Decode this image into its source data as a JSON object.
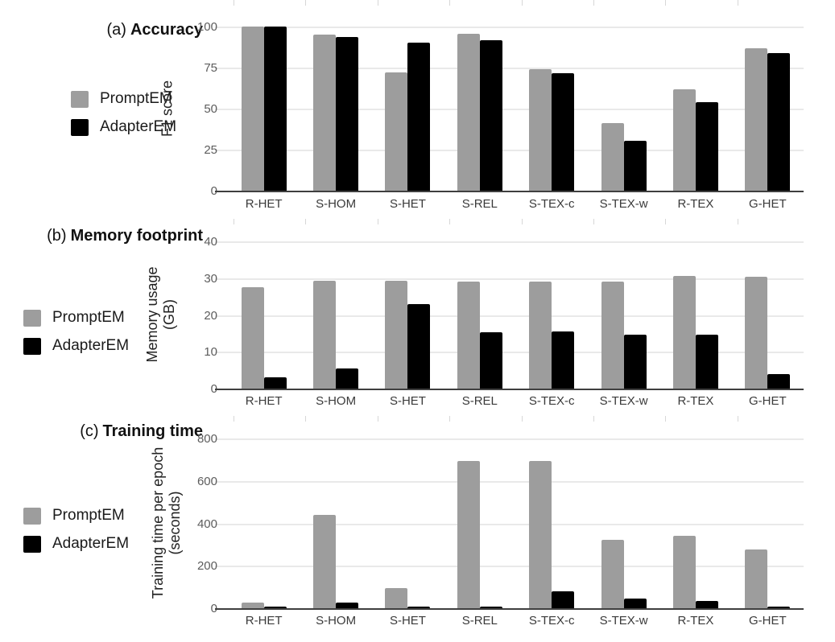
{
  "colors": {
    "promptem_gray": "#9d9d9d",
    "adapterem_black": "#000000",
    "gridline": "#e9e9e9",
    "axis_baseline": "#3f3f3f"
  },
  "chart_data": [
    {
      "type": "bar",
      "panel_label": "(a)",
      "title": "Accuracy",
      "ylabel_lines": [
        "F1 score"
      ],
      "legend_position": "left",
      "grid": true,
      "ylim": [
        0,
        100
      ],
      "yticks": [
        0,
        25,
        50,
        75,
        100
      ],
      "categories": [
        "R-HET",
        "S-HOM",
        "S-HET",
        "S-REL",
        "S-TEX-c",
        "S-TEX-w",
        "R-TEX",
        "G-HET"
      ],
      "series": [
        {
          "name": "PromptEM",
          "color": "#9d9d9d",
          "values": [
            100,
            95,
            72,
            95.5,
            74,
            41,
            62,
            87
          ]
        },
        {
          "name": "AdapterEM",
          "color": "#000000",
          "values": [
            100,
            93.5,
            90,
            91.5,
            71.5,
            30.5,
            54,
            84
          ]
        }
      ]
    },
    {
      "type": "bar",
      "panel_label": "(b)",
      "title": "Memory footprint",
      "ylabel_lines": [
        "Memory usage",
        "(GB)"
      ],
      "legend_position": "left",
      "grid": true,
      "ylim": [
        0,
        40
      ],
      "yticks": [
        0,
        10,
        20,
        30,
        40
      ],
      "categories": [
        "R-HET",
        "S-HOM",
        "S-HET",
        "S-REL",
        "S-TEX-c",
        "S-TEX-w",
        "R-TEX",
        "G-HET"
      ],
      "series": [
        {
          "name": "PromptEM",
          "color": "#9d9d9d",
          "values": [
            27.5,
            29.3,
            29.3,
            29.1,
            29.1,
            29.1,
            30.6,
            30.4
          ]
        },
        {
          "name": "AdapterEM",
          "color": "#000000",
          "values": [
            3.1,
            5.4,
            23,
            15.2,
            15.6,
            14.6,
            14.6,
            3.9
          ]
        }
      ]
    },
    {
      "type": "bar",
      "panel_label": "(c)",
      "title": "Training time",
      "ylabel_lines": [
        "Training time per epoch",
        "(seconds)"
      ],
      "legend_position": "left",
      "grid": true,
      "ylim": [
        0,
        800
      ],
      "yticks": [
        0,
        200,
        400,
        600,
        800
      ],
      "categories": [
        "R-HET",
        "S-HOM",
        "S-HET",
        "S-REL",
        "S-TEX-c",
        "S-TEX-w",
        "R-TEX",
        "G-HET"
      ],
      "series": [
        {
          "name": "PromptEM",
          "color": "#9d9d9d",
          "values": [
            28,
            440,
            95,
            695,
            695,
            322,
            340,
            277
          ]
        },
        {
          "name": "AdapterEM",
          "color": "#000000",
          "values": [
            8,
            25,
            7,
            8,
            80,
            44,
            33,
            9
          ]
        }
      ]
    }
  ]
}
